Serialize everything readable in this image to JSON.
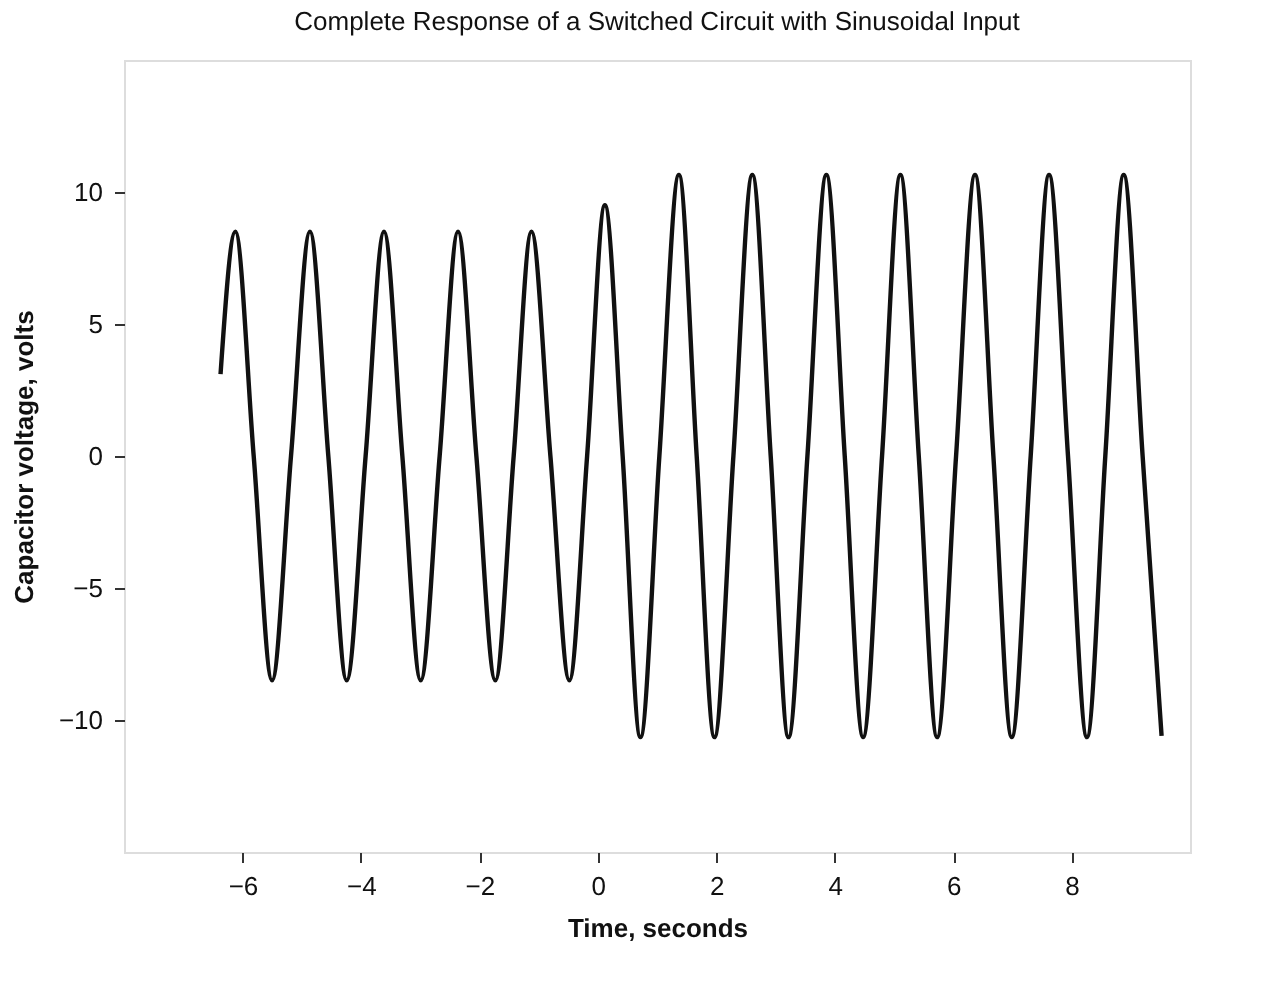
{
  "chart_data": {
    "type": "line",
    "title": "Complete Response of a Switched Circuit with Sinusoidal Input",
    "xlabel": "Time, seconds",
    "ylabel": "Capacitor voltage, volts",
    "xlim": [
      -8,
      10
    ],
    "xticks": [
      -6,
      -4,
      -2,
      0,
      2,
      4,
      6,
      8
    ],
    "ylim": [
      -15,
      15
    ],
    "yticks": [
      -10,
      -5,
      0,
      5,
      10
    ],
    "grid": false,
    "legend": false,
    "marker": "none",
    "line_style": "solid",
    "series": [
      {
        "color": "#111111",
        "x": [
          -6.37,
          -6.12,
          -5.81,
          -5.5,
          -5.18,
          -4.86,
          -4.55,
          -4.24,
          -3.92,
          -3.61,
          -3.3,
          -2.99,
          -2.67,
          -2.36,
          -2.05,
          -1.73,
          -1.42,
          -1.12,
          -0.8,
          -0.48,
          -0.18,
          0.12,
          0.42,
          0.72,
          1.04,
          1.37,
          1.67,
          1.97,
          2.29,
          2.61,
          2.92,
          3.22,
          3.54,
          3.86,
          4.17,
          4.48,
          4.8,
          5.11,
          5.42,
          5.73,
          6.05,
          6.37,
          6.68,
          6.99,
          7.31,
          7.62,
          7.94,
          8.26,
          8.57,
          8.88,
          9.2,
          9.52
        ],
        "values": [
          3.1,
          8.5,
          0,
          -8.5,
          0,
          8.5,
          0,
          -8.5,
          0,
          8.5,
          0,
          -8.5,
          0,
          8.5,
          0,
          -8.5,
          0,
          8.5,
          0,
          -8.5,
          0,
          9.5,
          0,
          -10.65,
          0,
          10.65,
          0,
          -10.65,
          0,
          10.65,
          0,
          -10.65,
          0,
          10.65,
          0,
          -10.65,
          0,
          10.65,
          0,
          -10.65,
          0,
          10.65,
          0,
          -10.65,
          0,
          10.65,
          0,
          -10.65,
          0,
          10.65,
          0,
          -10.6
        ]
      }
    ]
  }
}
